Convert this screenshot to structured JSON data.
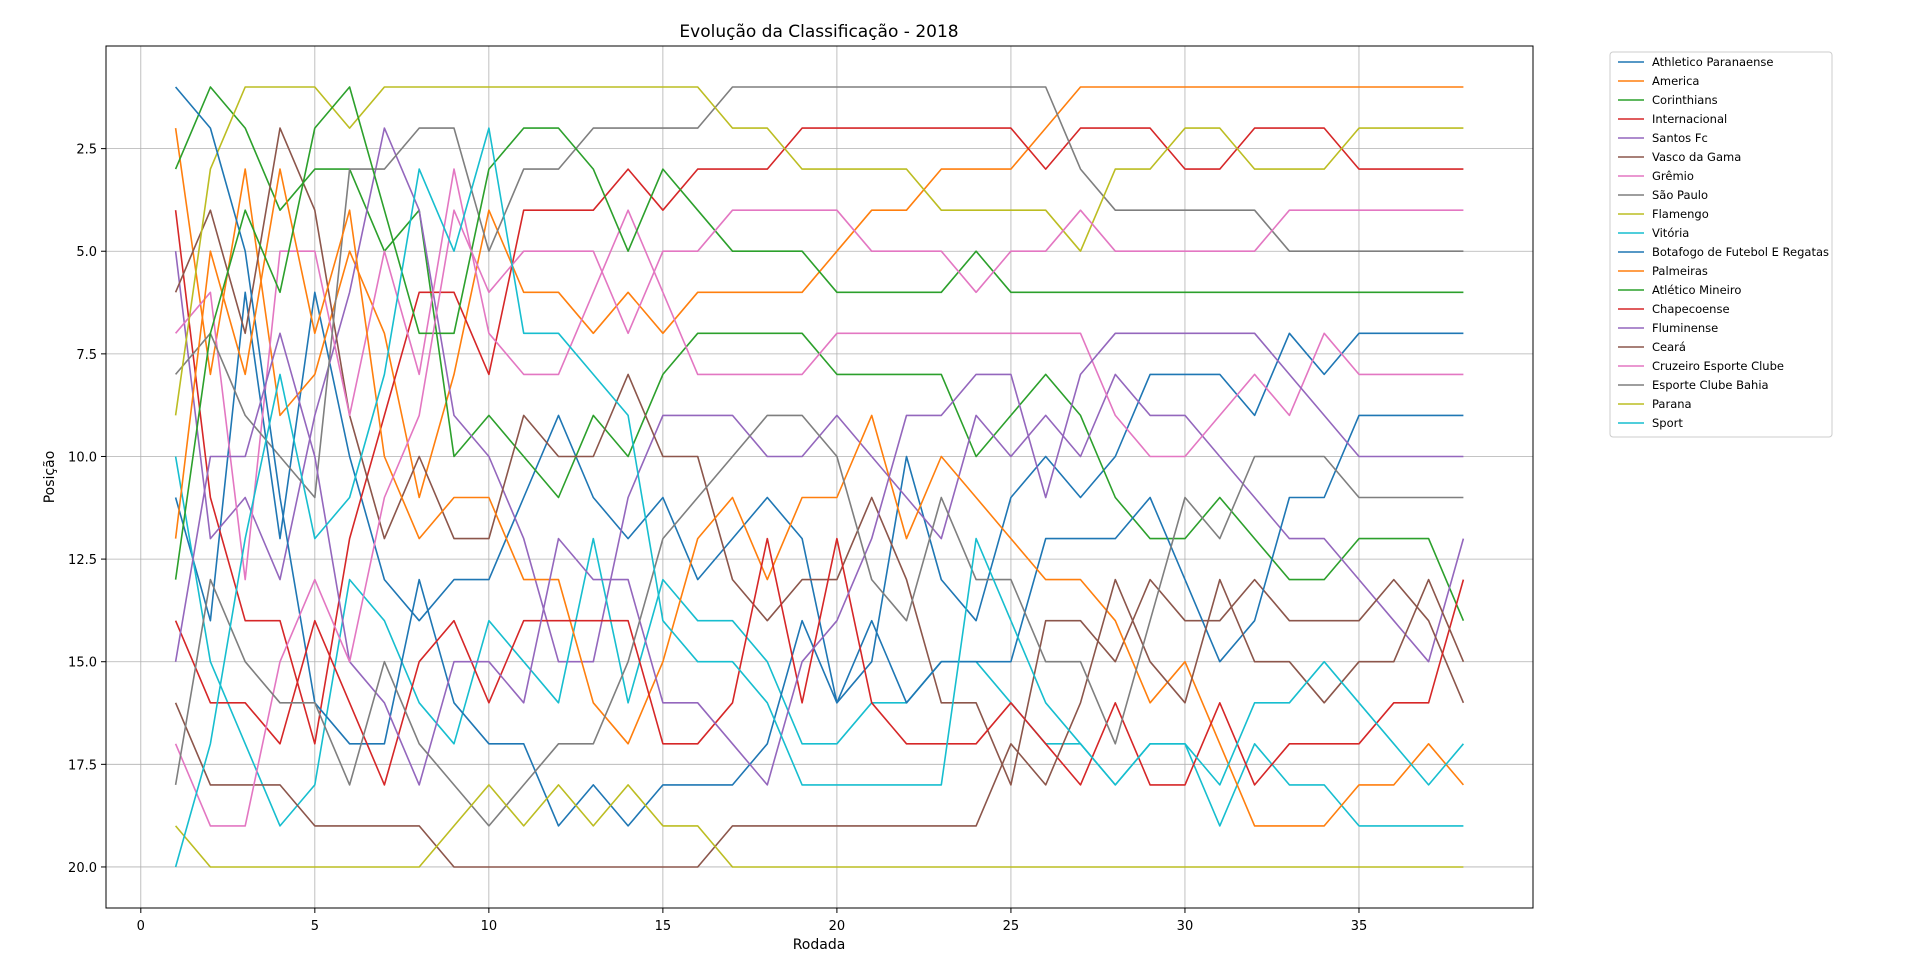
{
  "chart_data": {
    "type": "line",
    "title": "Evolução da Classificação - 2018",
    "xlabel": "Rodada",
    "ylabel": "Posição",
    "xlim": [
      -1,
      40
    ],
    "ylim": [
      21,
      0
    ],
    "y_inverted": true,
    "xticks": [
      0,
      5,
      10,
      15,
      20,
      25,
      30,
      35
    ],
    "xtick_labels": [
      "0",
      "5",
      "10",
      "15",
      "20",
      "25",
      "30",
      "35"
    ],
    "yticks": [
      2.5,
      5.0,
      7.5,
      10.0,
      12.5,
      15.0,
      17.5,
      20.0
    ],
    "ytick_labels": [
      "2.5",
      "5.0",
      "7.5",
      "10.0",
      "12.5",
      "15.0",
      "17.5",
      "20.0"
    ],
    "grid": true,
    "legend_position": "outside-right",
    "x": [
      1,
      2,
      3,
      4,
      5,
      6,
      7,
      8,
      9,
      10,
      11,
      12,
      13,
      14,
      15,
      16,
      17,
      18,
      19,
      20,
      21,
      22,
      23,
      24,
      25,
      26,
      27,
      28,
      29,
      30,
      31,
      32,
      33,
      34,
      35,
      36,
      37,
      38
    ],
    "series": [
      {
        "name": "Athletico Paranaense",
        "color": "#1f77b4",
        "values": [
          11,
          14,
          6,
          12,
          6,
          10,
          13,
          14,
          13,
          13,
          11,
          9,
          11,
          12,
          11,
          13,
          12,
          11,
          12,
          16,
          15,
          10,
          13,
          14,
          11,
          10,
          11,
          10,
          8,
          8,
          8,
          9,
          7,
          8,
          7,
          7,
          7,
          7
        ]
      },
      {
        "name": "America",
        "color": "#ff7f0e",
        "values": [
          2,
          8,
          3,
          9,
          8,
          5,
          7,
          11,
          8,
          4,
          6,
          6,
          7,
          6,
          7,
          6,
          6,
          6,
          6,
          5,
          4,
          4,
          3,
          3,
          3,
          2,
          1,
          1,
          1,
          1,
          1,
          1,
          1,
          1,
          1,
          1,
          1,
          1
        ]
      },
      {
        "name": "Corinthians",
        "color": "#2ca02c",
        "values": [
          3,
          1,
          2,
          4,
          3,
          3,
          5,
          4,
          10,
          9,
          10,
          11,
          9,
          10,
          8,
          7,
          7,
          7,
          7,
          8,
          8,
          8,
          8,
          10,
          9,
          8,
          9,
          11,
          12,
          12,
          11,
          12,
          13,
          13,
          12,
          12,
          12,
          14
        ]
      },
      {
        "name": "Internacional",
        "color": "#d62728",
        "values": [
          4,
          11,
          14,
          14,
          17,
          12,
          9,
          6,
          6,
          8,
          4,
          4,
          4,
          3,
          4,
          3,
          3,
          3,
          2,
          2,
          2,
          2,
          2,
          2,
          2,
          3,
          2,
          2,
          2,
          3,
          3,
          2,
          2,
          2,
          3,
          3,
          3,
          3
        ]
      },
      {
        "name": "Santos Fc",
        "color": "#9467bd",
        "values": [
          5,
          12,
          11,
          13,
          9,
          6,
          2,
          4,
          9,
          10,
          12,
          15,
          15,
          11,
          9,
          9,
          9,
          10,
          10,
          9,
          10,
          11,
          12,
          9,
          10,
          9,
          10,
          8,
          9,
          9,
          10,
          11,
          12,
          12,
          13,
          14,
          15,
          12
        ]
      },
      {
        "name": "Vasco da Gama",
        "color": "#8c564b",
        "values": [
          6,
          4,
          7,
          2,
          4,
          9,
          12,
          10,
          12,
          12,
          9,
          10,
          10,
          8,
          10,
          10,
          13,
          14,
          13,
          13,
          11,
          13,
          16,
          16,
          18,
          14,
          14,
          15,
          13,
          14,
          14,
          13,
          14,
          14,
          14,
          13,
          14,
          16
        ]
      },
      {
        "name": "Grêmio",
        "color": "#e377c2",
        "values": [
          7,
          6,
          13,
          5,
          5,
          9,
          5,
          8,
          3,
          7,
          8,
          8,
          6,
          4,
          6,
          8,
          8,
          8,
          8,
          7,
          7,
          7,
          7,
          7,
          7,
          7,
          7,
          9,
          10,
          10,
          9,
          8,
          9,
          7,
          8,
          8,
          8,
          8
        ]
      },
      {
        "name": "São Paulo",
        "color": "#7f7f7f",
        "values": [
          8,
          7,
          9,
          10,
          11,
          3,
          3,
          2,
          2,
          5,
          3,
          3,
          2,
          2,
          2,
          2,
          1,
          1,
          1,
          1,
          1,
          1,
          1,
          1,
          1,
          1,
          3,
          4,
          4,
          4,
          4,
          4,
          5,
          5,
          5,
          5,
          5,
          5
        ]
      },
      {
        "name": "Flamengo",
        "color": "#bcbd22",
        "values": [
          9,
          3,
          1,
          1,
          1,
          2,
          1,
          1,
          1,
          1,
          1,
          1,
          1,
          1,
          1,
          1,
          2,
          2,
          3,
          3,
          3,
          3,
          4,
          4,
          4,
          4,
          5,
          3,
          3,
          2,
          2,
          3,
          3,
          3,
          2,
          2,
          2,
          2
        ]
      },
      {
        "name": "Vitória",
        "color": "#17becf",
        "values": [
          10,
          15,
          17,
          19,
          18,
          13,
          14,
          16,
          17,
          14,
          15,
          16,
          12,
          16,
          13,
          14,
          14,
          15,
          17,
          17,
          16,
          16,
          15,
          15,
          16,
          17,
          17,
          18,
          17,
          17,
          19,
          17,
          18,
          18,
          19,
          19,
          19,
          19
        ]
      },
      {
        "name": "Botafogo de Futebol E Regatas",
        "color": "#1f77b4",
        "values": [
          1,
          2,
          5,
          11,
          16,
          17,
          17,
          13,
          16,
          17,
          17,
          19,
          18,
          19,
          18,
          18,
          18,
          17,
          14,
          16,
          14,
          16,
          15,
          15,
          15,
          12,
          12,
          12,
          11,
          13,
          15,
          14,
          11,
          11,
          9,
          9,
          9,
          9
        ]
      },
      {
        "name": "Palmeiras",
        "color": "#ff7f0e",
        "values": [
          12,
          5,
          8,
          3,
          7,
          4,
          10,
          12,
          11,
          11,
          13,
          13,
          16,
          17,
          15,
          12,
          11,
          13,
          11,
          11,
          9,
          12,
          10,
          11,
          12,
          13,
          13,
          14,
          16,
          15,
          17,
          19,
          19,
          19,
          18,
          18,
          17,
          18
        ]
      },
      {
        "name": "Atlético Mineiro",
        "color": "#2ca02c",
        "values": [
          13,
          7,
          4,
          6,
          2,
          1,
          4,
          7,
          7,
          3,
          2,
          2,
          3,
          5,
          3,
          4,
          5,
          5,
          5,
          6,
          6,
          6,
          6,
          5,
          6,
          6,
          6,
          6,
          6,
          6,
          6,
          6,
          6,
          6,
          6,
          6,
          6,
          6
        ]
      },
      {
        "name": "Chapecoense",
        "color": "#d62728",
        "values": [
          14,
          16,
          16,
          17,
          14,
          16,
          18,
          15,
          14,
          16,
          14,
          14,
          14,
          14,
          17,
          17,
          16,
          12,
          16,
          12,
          16,
          17,
          17,
          17,
          16,
          17,
          18,
          16,
          18,
          18,
          16,
          18,
          17,
          17,
          17,
          16,
          16,
          13
        ]
      },
      {
        "name": "Fluminense",
        "color": "#9467bd",
        "values": [
          15,
          10,
          10,
          7,
          10,
          15,
          16,
          18,
          15,
          15,
          16,
          12,
          13,
          13,
          16,
          16,
          17,
          18,
          15,
          14,
          12,
          9,
          9,
          8,
          8,
          11,
          8,
          7,
          7,
          7,
          7,
          7,
          8,
          9,
          10,
          10,
          10,
          10
        ]
      },
      {
        "name": "Ceará",
        "color": "#8c564b",
        "values": [
          16,
          18,
          18,
          18,
          19,
          19,
          19,
          19,
          20,
          20,
          20,
          20,
          20,
          20,
          20,
          20,
          19,
          19,
          19,
          19,
          19,
          19,
          19,
          19,
          17,
          18,
          16,
          13,
          15,
          16,
          13,
          15,
          15,
          16,
          15,
          15,
          13,
          15
        ]
      },
      {
        "name": "Cruzeiro Esporte Clube",
        "color": "#e377c2",
        "values": [
          17,
          19,
          19,
          15,
          13,
          15,
          11,
          9,
          4,
          6,
          5,
          5,
          5,
          7,
          5,
          5,
          4,
          4,
          4,
          4,
          5,
          5,
          5,
          6,
          5,
          5,
          4,
          5,
          5,
          5,
          5,
          5,
          4,
          4,
          4,
          4,
          4,
          4
        ]
      },
      {
        "name": "Esporte Clube Bahia",
        "color": "#7f7f7f",
        "values": [
          18,
          13,
          15,
          16,
          16,
          18,
          15,
          17,
          18,
          19,
          18,
          17,
          17,
          15,
          12,
          11,
          10,
          9,
          9,
          10,
          13,
          14,
          11,
          13,
          13,
          15,
          15,
          17,
          14,
          11,
          12,
          10,
          10,
          10,
          11,
          11,
          11,
          11
        ]
      },
      {
        "name": "Parana",
        "color": "#bcbd22",
        "values": [
          19,
          20,
          20,
          20,
          20,
          20,
          20,
          20,
          19,
          18,
          19,
          18,
          19,
          18,
          19,
          19,
          20,
          20,
          20,
          20,
          20,
          20,
          20,
          20,
          20,
          20,
          20,
          20,
          20,
          20,
          20,
          20,
          20,
          20,
          20,
          20,
          20,
          20
        ]
      },
      {
        "name": "Sport",
        "color": "#17becf",
        "values": [
          20,
          17,
          12,
          8,
          12,
          11,
          8,
          3,
          5,
          2,
          7,
          7,
          8,
          9,
          14,
          15,
          15,
          16,
          18,
          18,
          18,
          18,
          18,
          12,
          14,
          16,
          17,
          18,
          17,
          17,
          18,
          16,
          16,
          15,
          16,
          17,
          18,
          17
        ]
      }
    ]
  }
}
